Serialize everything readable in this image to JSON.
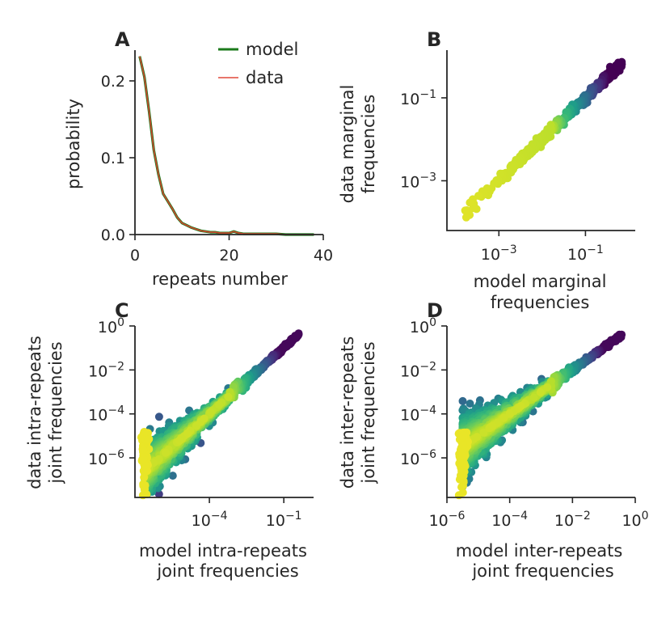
{
  "chart_data": [
    {
      "panel": "A",
      "type": "line",
      "xlabel": "repeats number",
      "ylabel": "probability",
      "xlim": [
        0,
        40
      ],
      "ylim": [
        0,
        0.24
      ],
      "xticks": [
        0,
        20,
        40
      ],
      "xtick_labels": [
        "0",
        "20",
        "40"
      ],
      "yticks": [
        0.0,
        0.1,
        0.2
      ],
      "ytick_labels": [
        "0.0",
        "0.1",
        "0.2"
      ],
      "legend": [
        {
          "label": "model",
          "color": "#1b7a1b"
        },
        {
          "label": "data",
          "color": "#e0483a"
        }
      ],
      "x": [
        1,
        2,
        3,
        4,
        5,
        6,
        7,
        8,
        9,
        10,
        11,
        12,
        13,
        14,
        15,
        16,
        17,
        18,
        19,
        20,
        21,
        22,
        23,
        24,
        25,
        26,
        28,
        30,
        32,
        34,
        36,
        38
      ],
      "series": [
        {
          "name": "model",
          "values": [
            0.232,
            0.205,
            0.16,
            0.11,
            0.078,
            0.053,
            0.043,
            0.033,
            0.022,
            0.015,
            0.012,
            0.009,
            0.007,
            0.005,
            0.004,
            0.003,
            0.003,
            0.002,
            0.002,
            0.002,
            0.004,
            0.002,
            0.001,
            0.001,
            0.001,
            0.001,
            0.001,
            0.001,
            0.0,
            0.0,
            0.0,
            0.0
          ]
        },
        {
          "name": "data",
          "values": [
            0.232,
            0.205,
            0.16,
            0.11,
            0.078,
            0.053,
            0.043,
            0.033,
            0.022,
            0.015,
            0.012,
            0.009,
            0.007,
            0.005,
            0.004,
            0.003,
            0.003,
            0.002,
            0.002,
            0.002,
            0.004,
            0.002,
            0.001,
            0.001,
            0.001,
            0.001,
            0.001,
            0.001,
            0.0,
            0.0,
            0.0,
            0.0
          ]
        }
      ]
    },
    {
      "panel": "B",
      "type": "scatter",
      "scale": "log",
      "xlabel": [
        "model marginal",
        "frequencies"
      ],
      "ylabel": [
        "data marginal",
        "frequencies"
      ],
      "xlim_log10": [
        -4.2,
        0.15
      ],
      "ylim_log10": [
        -4.2,
        0.15
      ],
      "xticks_log10": [
        -3,
        -1
      ],
      "yticks_log10": [
        -3,
        -1
      ],
      "tick_base": "10",
      "tick_exponents": [
        "−3",
        "−1"
      ],
      "colormap": "viridis (dense/yellow at low frequencies, purple at high)",
      "points_log10_x_range": [
        -3.8,
        -0.15
      ]
    },
    {
      "panel": "C",
      "type": "scatter",
      "scale": "log",
      "xlabel": [
        "model intra-repeats",
        "joint frequencies"
      ],
      "ylabel": [
        "data intra-repeats",
        "joint frequencies"
      ],
      "xlim_log10": [
        -7,
        0.2
      ],
      "ylim_log10": [
        -7.8,
        0
      ],
      "xticks_log10": [
        -4,
        -1
      ],
      "x_tick_exponents": [
        "−4",
        "−1"
      ],
      "yticks_log10": [
        0,
        -2,
        -4,
        -6
      ],
      "y_tick_exponents": [
        "0",
        "−2",
        "−4",
        "−6"
      ],
      "tick_base": "10",
      "colormap": "viridis (yellow = many points, purple = few)"
    },
    {
      "panel": "D",
      "type": "scatter",
      "scale": "log",
      "xlabel": [
        "model inter-repeats",
        "joint frequencies"
      ],
      "ylabel": [
        "data inter-repeats",
        "joint frequencies"
      ],
      "xlim_log10": [
        -6,
        0
      ],
      "ylim_log10": [
        -7.8,
        0
      ],
      "xticks_log10": [
        -6,
        -4,
        -2,
        0
      ],
      "x_tick_exponents": [
        "−6",
        "−4",
        "−2",
        "0"
      ],
      "yticks_log10": [
        0,
        -2,
        -4,
        -6
      ],
      "y_tick_exponents": [
        "0",
        "−2",
        "−4",
        "−6"
      ],
      "tick_base": "10",
      "colormap": "viridis (yellow = many points, purple = few)"
    }
  ]
}
